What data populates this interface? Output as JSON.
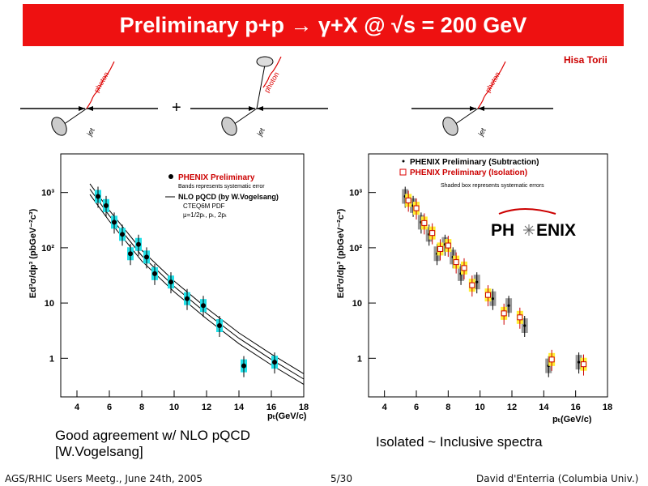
{
  "header": {
    "title": "Preliminary p+p → γ+X @ √s = 200 GeV",
    "author": "Hisa Torii"
  },
  "diagrams": {
    "photon_label": "photon",
    "jet_label": "jet",
    "plus": "+"
  },
  "left_plot": {
    "ylabel": "Ed³σ/dp³ (pbGeV⁻²c³)",
    "xlabel": "pₜ(GeV/c)",
    "legend_data": "PHENIX Preliminary",
    "legend_data_sub": "Bands represents systematic error",
    "legend_theory": "NLO pQCD (by W.Vogelsang)",
    "legend_pdf": "CTEQ6M PDF",
    "legend_scale": "μ=1/2pₜ, pₜ, 2pₜ",
    "yticks": [
      "1",
      "10",
      "10²",
      "10³"
    ],
    "xticks": [
      "4",
      "6",
      "8",
      "10",
      "12",
      "14",
      "16",
      "18"
    ]
  },
  "right_plot": {
    "ylabel": "Ed³σ/dp³ (pbGeV⁻²c³)",
    "xlabel": "pₜ(GeV/c)",
    "legend_sub": "PHENIX Preliminary (Subtraction)",
    "legend_iso": "PHENIX Preliminary (Isolation)",
    "legend_note": "Shaded box represents systematic errors",
    "logo_left": "PH",
    "logo_right": "ENIX",
    "yticks": [
      "1",
      "10",
      "10²",
      "10³"
    ],
    "xticks": [
      "4",
      "6",
      "8",
      "10",
      "12",
      "14",
      "16",
      "18"
    ]
  },
  "captions": {
    "left_line1": "Good agreement w/ NLO pQCD",
    "left_line2": "[W.Vogelsang]",
    "right": "Isolated ~ Inclusive spectra"
  },
  "footer": {
    "left": "AGS/RHIC Users Meetg., June 24th, 2005",
    "page": "5/30",
    "right": "David d'Enterria (Columbia Univ.)"
  },
  "chart_data": [
    {
      "type": "scatter",
      "xlabel": "pₜ(GeV/c)",
      "ylabel": "Ed³σ/dp³ (pbGeV⁻²c³)",
      "xlim": [
        3,
        18
      ],
      "ylim": [
        0.2,
        5000
      ],
      "yscale": "log",
      "series": [
        {
          "name": "PHENIX Preliminary",
          "x": [
            5.3,
            5.8,
            6.3,
            6.8,
            7.3,
            7.8,
            8.3,
            8.8,
            9.8,
            10.8,
            11.8,
            12.8,
            14.3,
            16.2
          ],
          "y": [
            850,
            580,
            290,
            175,
            78,
            115,
            68,
            34,
            24,
            12,
            9,
            3.9,
            0.73,
            0.85
          ]
        },
        {
          "name": "NLO pQCD (by W.Vogelsang)",
          "x": [
            4.8,
            6,
            8,
            10,
            12,
            14,
            16,
            18
          ],
          "y": [
            1150,
            380,
            72,
            20,
            6.5,
            2.3,
            0.95,
            0.42
          ]
        }
      ]
    },
    {
      "type": "scatter",
      "xlabel": "pₜ(GeV/c)",
      "ylabel": "Ed³σ/dp³ (pbGeV⁻²c³)",
      "xlim": [
        3,
        18
      ],
      "ylim": [
        0.2,
        5000
      ],
      "yscale": "log",
      "series": [
        {
          "name": "PHENIX Preliminary (Subtraction)",
          "x": [
            5.3,
            5.8,
            6.3,
            6.8,
            7.3,
            7.8,
            8.3,
            8.8,
            9.8,
            10.8,
            11.8,
            12.8,
            14.3,
            16.2
          ],
          "y": [
            850,
            580,
            290,
            175,
            78,
            115,
            68,
            34,
            24,
            12,
            9,
            3.9,
            0.73,
            0.85
          ]
        },
        {
          "name": "PHENIX Preliminary (Isolation)",
          "x": [
            5.5,
            6.0,
            6.5,
            7.0,
            7.5,
            8.0,
            8.5,
            9.0,
            9.5,
            10.5,
            11.5,
            12.5,
            14.5,
            16.5
          ],
          "y": [
            720,
            520,
            280,
            185,
            95,
            110,
            55,
            43,
            21,
            14,
            6.5,
            5.5,
            0.95,
            0.78
          ]
        }
      ]
    }
  ]
}
